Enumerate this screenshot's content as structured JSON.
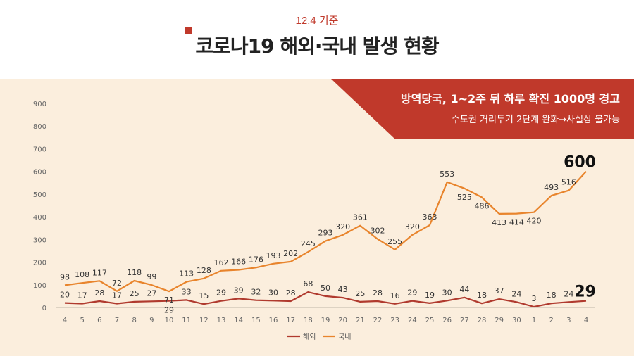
{
  "header": {
    "date": "12.4 기준",
    "title": "코로나19 해외·국내 발생 현황"
  },
  "banner": {
    "headline": "방역당국, 1~2주 뒤 하루 확진 1000명 경고",
    "subline": "수도권 거리두기 2단계 완화→사실상 불가능",
    "color": "#c0392b"
  },
  "chart_data": {
    "type": "line",
    "ylim": [
      0,
      900
    ],
    "yticks": [
      0,
      100,
      200,
      300,
      400,
      500,
      600,
      700,
      800,
      900
    ],
    "categories": [
      "4",
      "5",
      "6",
      "7",
      "8",
      "9",
      "10",
      "11",
      "12",
      "13",
      "14",
      "15",
      "16",
      "17",
      "18",
      "19",
      "20",
      "21",
      "22",
      "23",
      "24",
      "25",
      "26",
      "27",
      "28",
      "29",
      "30",
      "1",
      "2",
      "3",
      "4"
    ],
    "series": [
      {
        "name": "해외",
        "color": "#b03a2e",
        "values": [
          20,
          17,
          28,
          17,
          25,
          27,
          29,
          33,
          15,
          29,
          39,
          32,
          30,
          28,
          68,
          50,
          43,
          25,
          28,
          16,
          29,
          19,
          30,
          44,
          18,
          37,
          24,
          3,
          18,
          24,
          29
        ]
      },
      {
        "name": "국내",
        "color": "#e8842c",
        "values": [
          98,
          108,
          117,
          72,
          118,
          99,
          71,
          113,
          128,
          162,
          166,
          176,
          193,
          202,
          245,
          293,
          320,
          361,
          302,
          255,
          320,
          363,
          553,
          525,
          486,
          413,
          414,
          420,
          493,
          516,
          600
        ]
      }
    ],
    "highlight": {
      "domestic_last": "600",
      "overseas_last": "29"
    },
    "legend": "bottom",
    "grid": false
  }
}
